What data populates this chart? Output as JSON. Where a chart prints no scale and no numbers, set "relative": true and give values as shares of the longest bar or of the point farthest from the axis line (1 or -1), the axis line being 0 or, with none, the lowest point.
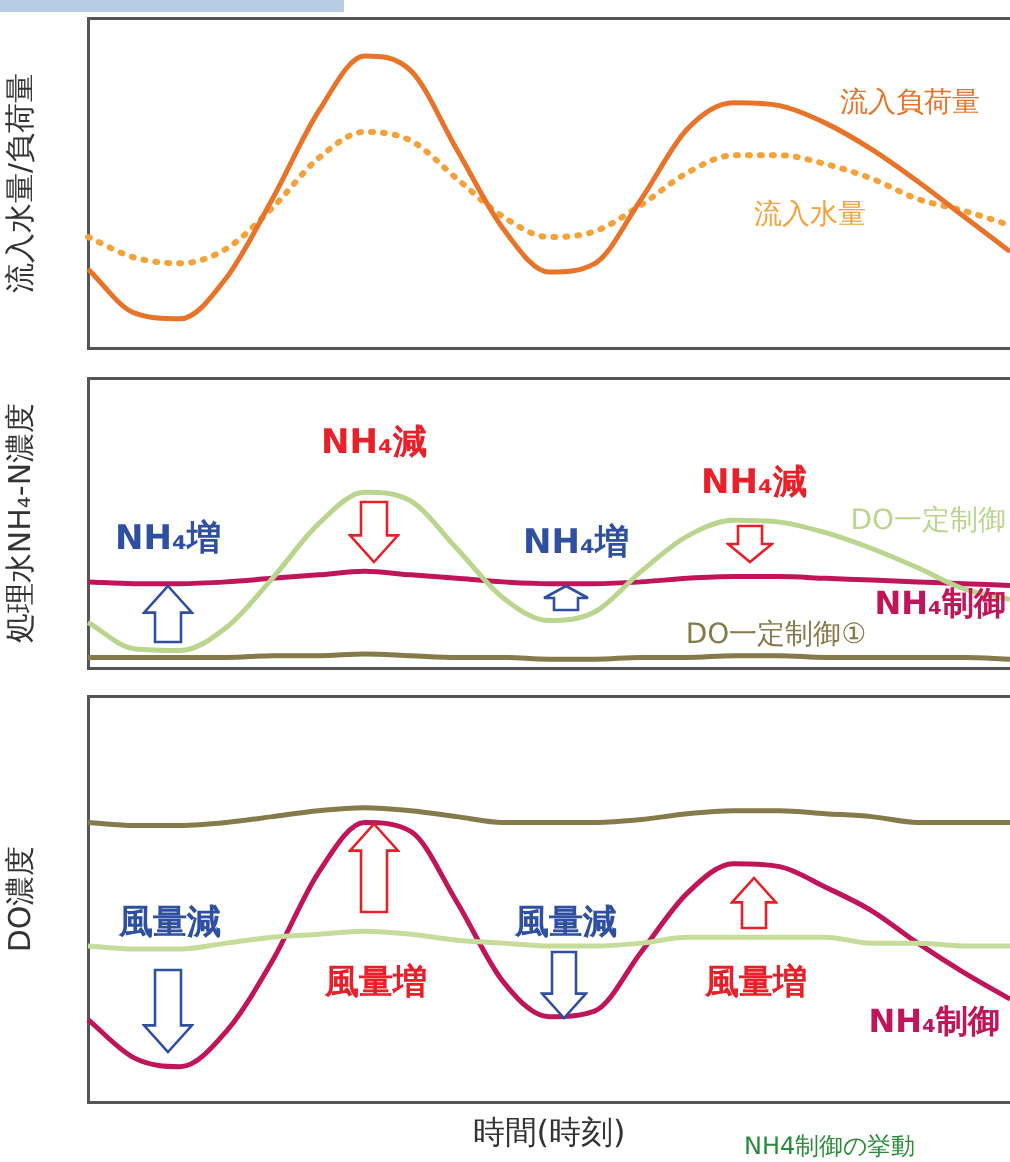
{
  "chart_data": [
    {
      "type": "line",
      "ylabel": "流入水量/負荷量",
      "relative": true,
      "marker": "none",
      "legend": false,
      "categories": [
        null,
        null,
        null,
        null,
        null,
        null,
        null,
        null,
        null,
        null,
        null,
        null,
        null,
        null,
        null,
        null,
        null,
        null,
        null,
        null,
        null
      ],
      "series": [
        {
          "name": "流入負荷量",
          "color": "#e8742a",
          "values": [
            0.27,
            0.12,
            0.1,
            0.24,
            0.51,
            0.81,
            1.0,
            0.95,
            0.68,
            0.41,
            0.26,
            0.29,
            0.51,
            0.75,
            0.84,
            0.83,
            0.77,
            0.68,
            0.57,
            0.45,
            0.33
          ]
        },
        {
          "name": "流入水量",
          "color": "#f5a23a",
          "line_style": "dotted",
          "values": [
            0.38,
            0.31,
            0.29,
            0.34,
            0.48,
            0.65,
            0.74,
            0.71,
            0.58,
            0.45,
            0.38,
            0.4,
            0.49,
            0.6,
            0.66,
            0.66,
            0.63,
            0.58,
            0.51,
            0.47,
            0.42
          ]
        }
      ]
    },
    {
      "type": "line",
      "ylabel": "処理水NH₄-N濃度",
      "relative": true,
      "marker": "none",
      "legend": false,
      "categories": [
        null,
        null,
        null,
        null,
        null,
        null,
        null,
        null,
        null,
        null,
        null,
        null,
        null,
        null,
        null,
        null,
        null,
        null,
        null,
        null,
        null
      ],
      "annotations": [
        "NH₄減",
        "NH₄減",
        "NH₄増",
        "NH₄増"
      ],
      "series": [
        {
          "name": "DO一定制御",
          "color": "#b9d58e",
          "values": [
            0.26,
            0.11,
            0.1,
            0.23,
            0.51,
            0.82,
            1.0,
            0.95,
            0.68,
            0.4,
            0.27,
            0.32,
            0.55,
            0.75,
            0.84,
            0.83,
            0.77,
            0.68,
            0.57,
            0.45,
            0.39
          ]
        },
        {
          "name": "NH₄制御",
          "color": "#c0155a",
          "values": [
            0.49,
            0.48,
            0.48,
            0.49,
            0.51,
            0.53,
            0.55,
            0.53,
            0.51,
            0.49,
            0.48,
            0.48,
            0.49,
            0.51,
            0.52,
            0.52,
            0.51,
            0.5,
            0.49,
            0.48,
            0.47
          ]
        },
        {
          "name": "DO一定制御①",
          "color": "#847a4a",
          "values": [
            0.06,
            0.06,
            0.06,
            0.06,
            0.07,
            0.07,
            0.08,
            0.07,
            0.06,
            0.06,
            0.05,
            0.05,
            0.06,
            0.06,
            0.07,
            0.07,
            0.06,
            0.06,
            0.06,
            0.06,
            0.05
          ]
        }
      ]
    },
    {
      "type": "line",
      "ylabel": "DO濃度",
      "xlabel": "時間(時刻)",
      "relative": true,
      "marker": "none",
      "legend": false,
      "categories": [
        null,
        null,
        null,
        null,
        null,
        null,
        null,
        null,
        null,
        null,
        null,
        null,
        null,
        null,
        null,
        null,
        null,
        null,
        null,
        null,
        null
      ],
      "annotations": [
        "風量減",
        "風量減",
        "風量増",
        "風量増",
        "NH4制御の挙動"
      ],
      "series": [
        {
          "color": "#847a4a",
          "values": [
            0.95,
            0.94,
            0.94,
            0.95,
            0.97,
            0.99,
            1.0,
            0.99,
            0.97,
            0.95,
            0.95,
            0.95,
            0.96,
            0.98,
            0.99,
            0.99,
            0.98,
            0.97,
            0.95,
            0.95,
            0.95
          ]
        },
        {
          "color": "#c5dc9a",
          "values": [
            0.53,
            0.52,
            0.52,
            0.54,
            0.56,
            0.57,
            0.58,
            0.57,
            0.55,
            0.54,
            0.53,
            0.53,
            0.54,
            0.56,
            0.56,
            0.56,
            0.56,
            0.54,
            0.54,
            0.53,
            0.53
          ]
        },
        {
          "name": "NH₄制御",
          "color": "#c0155a",
          "values": [
            0.28,
            0.15,
            0.12,
            0.24,
            0.48,
            0.78,
            0.95,
            0.92,
            0.68,
            0.41,
            0.29,
            0.31,
            0.51,
            0.71,
            0.81,
            0.8,
            0.73,
            0.65,
            0.54,
            0.44,
            0.35
          ]
        }
      ]
    }
  ]
}
